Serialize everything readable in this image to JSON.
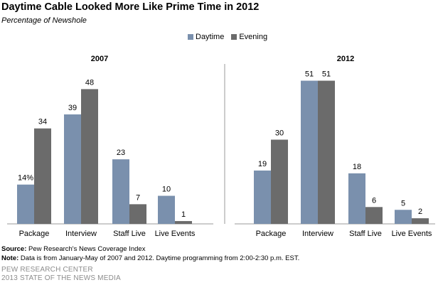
{
  "title": "Daytime Cable Looked More Like Prime Time in 2012",
  "subtitle": "Percentage of Newshole",
  "legend": [
    {
      "name": "Daytime",
      "color": "#7a90ad"
    },
    {
      "name": "Evening",
      "color": "#6b6b6b"
    }
  ],
  "chart_data": [
    {
      "type": "bar",
      "title": "2007",
      "categories": [
        "Package",
        "Interview",
        "Staff Live",
        "Live Events"
      ],
      "series": [
        {
          "name": "Daytime",
          "values": [
            14,
            39,
            23,
            10
          ],
          "labels": [
            "14%",
            "39",
            "23",
            "10"
          ]
        },
        {
          "name": "Evening",
          "values": [
            34,
            48,
            7,
            1
          ],
          "labels": [
            "34",
            "48",
            "7",
            "1"
          ]
        }
      ],
      "ylim": [
        0,
        60
      ]
    },
    {
      "type": "bar",
      "title": "2012",
      "categories": [
        "Package",
        "Interview",
        "Staff Live",
        "Live Events"
      ],
      "series": [
        {
          "name": "Daytime",
          "values": [
            19,
            51,
            18,
            5
          ],
          "labels": [
            "19",
            "51",
            "18",
            "5"
          ]
        },
        {
          "name": "Evening",
          "values": [
            30,
            51,
            6,
            2
          ],
          "labels": [
            "30",
            "51",
            "6",
            "2"
          ]
        }
      ],
      "ylim": [
        0,
        60
      ]
    }
  ],
  "notes": {
    "source_label": "Source:",
    "source_text": "Pew Research's News Coverage Index",
    "note_label": "Note:",
    "note_text": "Data is from January-May of 2007  and 2012. Daytime programming from 2:00-2:30 p.m. EST."
  },
  "footer": {
    "line1": "PEW RESEARCH CENTER",
    "line2": "2013 STATE OF THE NEWS MEDIA"
  }
}
